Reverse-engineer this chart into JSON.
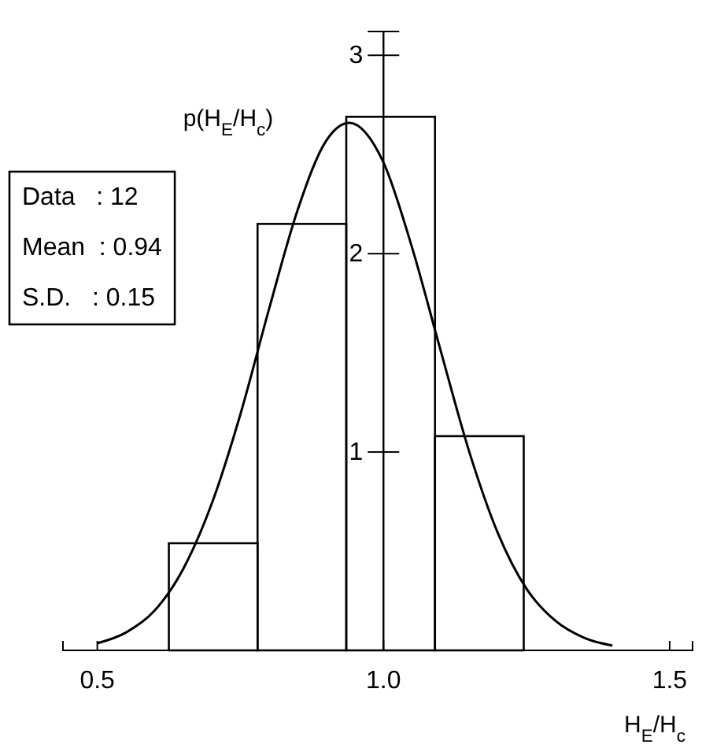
{
  "chart_data": {
    "type": "histogram",
    "xlabel": "H$_{E}$/H$_{c}$",
    "ylabel": "p(H$_{E}$/H$_{c}$)",
    "annotations": [
      "Data   : 12",
      "Mean  : 0.94",
      "S.D.   : 0.15"
    ],
    "xlim": [
      0.44,
      1.54
    ],
    "xticks": [
      0.5,
      {
        "value": 1,
        "label": "1.0"
      },
      1.5
    ],
    "ylim": [
      0,
      3.12
    ],
    "yticks": [
      1,
      2,
      3
    ],
    "grid": false,
    "series": [
      {
        "color": "#000000",
        "bins": [
          0.625,
          0.78,
          0.935,
          1.09,
          1.245
        ],
        "values": [
          0.54,
          2.15,
          2.69,
          1.08
        ]
      },
      {
        "type": "line",
        "color": "#000000",
        "x": [
          0.5,
          0.55,
          0.6,
          0.65,
          0.7,
          0.75,
          0.8,
          0.85,
          0.9,
          0.94,
          1.0,
          1.05,
          1.1,
          1.15,
          1.2,
          1.25,
          1.3,
          1.35,
          1.4
        ],
        "values": [
          0.036,
          0.09,
          0.2,
          0.41,
          0.74,
          1.19,
          1.72,
          2.22,
          2.57,
          2.66,
          2.46,
          2.03,
          1.51,
          1.0,
          0.59,
          0.31,
          0.15,
          0.064,
          0.024
        ]
      }
    ]
  }
}
